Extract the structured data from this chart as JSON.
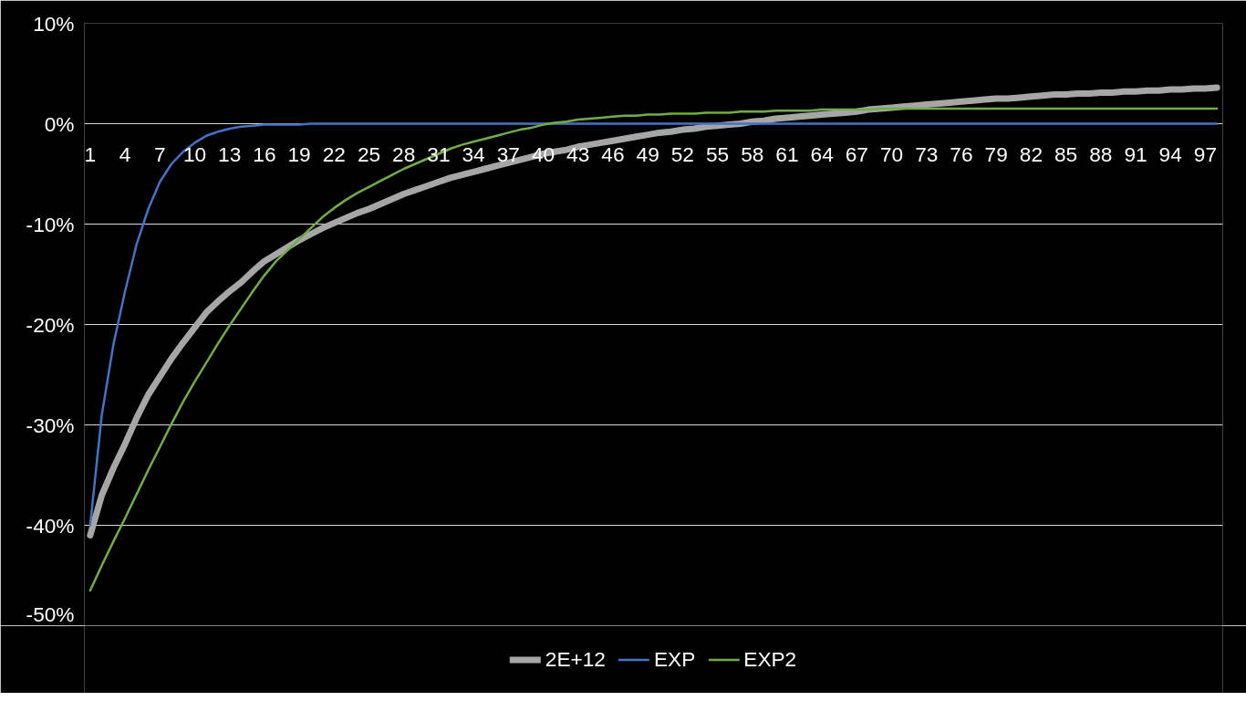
{
  "chart_data": {
    "type": "line",
    "categories": [
      "1",
      null,
      null,
      "4",
      null,
      null,
      "7",
      null,
      null,
      "10",
      null,
      null,
      "13",
      null,
      null,
      "16",
      null,
      null,
      "19",
      null,
      null,
      "22",
      null,
      null,
      "25",
      null,
      null,
      "28",
      null,
      null,
      "31",
      null,
      null,
      "34",
      null,
      null,
      "37",
      null,
      null,
      "40",
      null,
      null,
      "43",
      null,
      null,
      "46",
      null,
      null,
      "49",
      null,
      null,
      "52",
      null,
      null,
      "55",
      null,
      null,
      "58",
      null,
      null,
      "61",
      null,
      null,
      "64",
      null,
      null,
      "67",
      null,
      null,
      "70",
      null,
      null,
      "73",
      null,
      null,
      "76",
      null,
      null,
      "79",
      null,
      null,
      "82",
      null,
      null,
      "85",
      null,
      null,
      "88",
      null,
      null,
      "91",
      null,
      null,
      "94",
      null,
      null,
      "97",
      null
    ],
    "series": [
      {
        "name": "2E+12",
        "color": "#a6a6a6",
        "values": [
          -41,
          -37,
          -34.3,
          -31.9,
          -29.3,
          -27,
          -25.2,
          -23.4,
          -21.8,
          -20.3,
          -18.8,
          -17.7,
          -16.7,
          -15.8,
          -14.7,
          -13.7,
          -13.0,
          -12.3,
          -11.6,
          -11.0,
          -10.4,
          -9.9,
          -9.4,
          -8.9,
          -8.5,
          -8.0,
          -7.5,
          -7.0,
          -6.6,
          -6.2,
          -5.8,
          -5.4,
          -5.1,
          -4.8,
          -4.5,
          -4.2,
          -3.9,
          -3.6,
          -3.3,
          -3.0,
          -2.8,
          -2.6,
          -2.3,
          -2.1,
          -1.9,
          -1.7,
          -1.5,
          -1.3,
          -1.1,
          -0.9,
          -0.8,
          -0.6,
          -0.5,
          -0.3,
          -0.2,
          -0.1,
          0.0,
          0.2,
          0.3,
          0.5,
          0.6,
          0.7,
          0.8,
          0.9,
          1.0,
          1.1,
          1.2,
          1.4,
          1.5,
          1.6,
          1.7,
          1.8,
          1.9,
          2.0,
          2.1,
          2.2,
          2.3,
          2.4,
          2.5,
          2.5,
          2.6,
          2.7,
          2.8,
          2.9,
          2.9,
          3.0,
          3.0,
          3.1,
          3.1,
          3.2,
          3.2,
          3.3,
          3.3,
          3.4,
          3.4,
          3.5,
          3.5,
          3.6
        ]
      },
      {
        "name": "EXP",
        "color": "#4472c4",
        "values": [
          -40,
          -29,
          -22,
          -16.7,
          -12,
          -8.5,
          -5.8,
          -4.0,
          -2.8,
          -1.9,
          -1.2,
          -0.8,
          -0.5,
          -0.3,
          -0.2,
          -0.1,
          -0.1,
          -0.1,
          -0.1,
          0,
          0,
          0,
          0,
          0,
          0,
          0,
          0,
          0,
          0,
          0,
          0,
          0,
          0,
          0,
          0,
          0,
          0,
          0,
          0,
          0,
          0,
          0,
          0,
          0,
          0,
          0,
          0,
          0,
          0,
          0,
          0,
          0,
          0,
          0,
          0,
          0,
          0,
          0,
          0,
          0,
          0,
          0,
          0,
          0,
          0,
          0,
          0,
          0,
          0,
          0,
          0,
          0,
          0,
          0,
          0,
          0,
          0,
          0,
          0,
          0,
          0,
          0,
          0,
          0,
          0,
          0,
          0,
          0,
          0,
          0,
          0,
          0,
          0,
          0,
          0,
          0,
          0,
          0
        ]
      },
      {
        "name": "EXP2",
        "color": "#70ad47",
        "values": [
          -46.5,
          -44.0,
          -41.6,
          -39.3,
          -36.9,
          -34.5,
          -32.2,
          -29.9,
          -27.7,
          -25.7,
          -23.8,
          -21.9,
          -20.1,
          -18.4,
          -16.7,
          -15.1,
          -13.7,
          -12.6,
          -11.5,
          -10.4,
          -9.3,
          -8.4,
          -7.6,
          -6.9,
          -6.3,
          -5.7,
          -5.1,
          -4.5,
          -4.0,
          -3.5,
          -3.0,
          -2.5,
          -2.1,
          -1.8,
          -1.5,
          -1.2,
          -0.9,
          -0.6,
          -0.4,
          -0.1,
          0.1,
          0.2,
          0.4,
          0.5,
          0.6,
          0.7,
          0.8,
          0.8,
          0.9,
          0.9,
          1.0,
          1.0,
          1.0,
          1.1,
          1.1,
          1.1,
          1.2,
          1.2,
          1.2,
          1.3,
          1.3,
          1.3,
          1.3,
          1.4,
          1.4,
          1.4,
          1.4,
          1.4,
          1.5,
          1.5,
          1.5,
          1.5,
          1.5,
          1.5,
          1.5,
          1.5,
          1.5,
          1.5,
          1.5,
          1.5,
          1.5,
          1.5,
          1.5,
          1.5,
          1.5,
          1.5,
          1.5,
          1.5,
          1.5,
          1.5,
          1.5,
          1.5,
          1.5,
          1.5,
          1.5,
          1.5,
          1.5,
          1.5
        ]
      }
    ],
    "ylim": [
      -50,
      10
    ],
    "yticks": [
      {
        "value": 10,
        "label": "10%"
      },
      {
        "value": 0,
        "label": "0%"
      },
      {
        "value": -10,
        "label": "-10%"
      },
      {
        "value": -20,
        "label": "-20%"
      },
      {
        "value": -30,
        "label": "-30%"
      },
      {
        "value": -40,
        "label": "-40%"
      },
      {
        "value": -50,
        "label": "-50%"
      }
    ],
    "grid": "y",
    "legend": "bottom",
    "marker": "none",
    "line_style": "solid"
  }
}
